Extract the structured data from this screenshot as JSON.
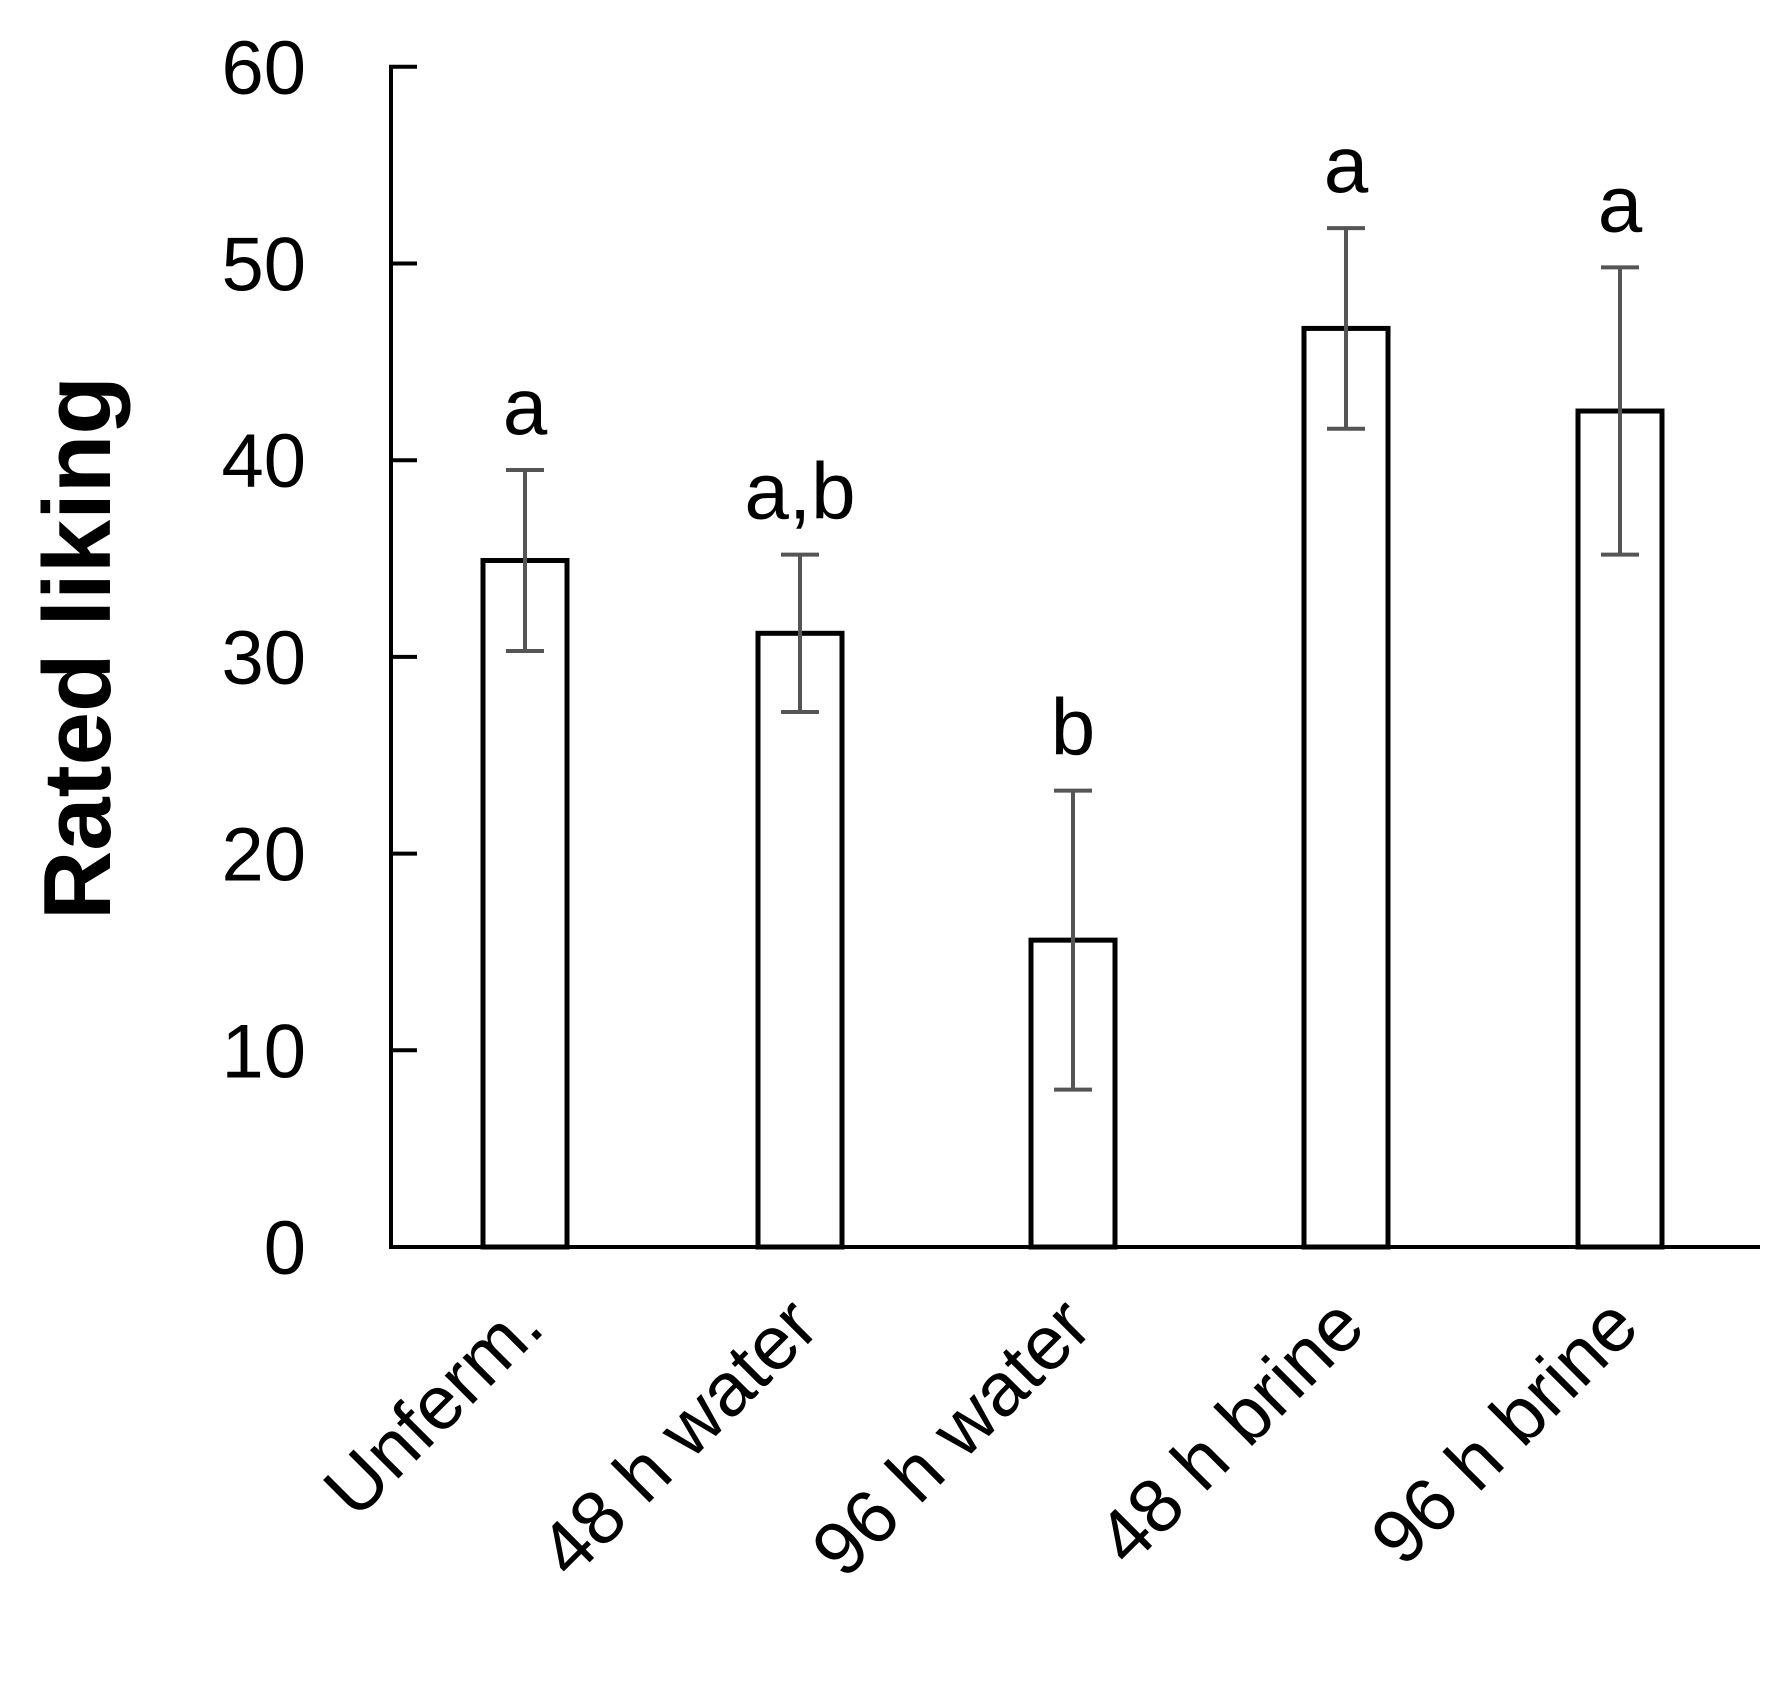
{
  "chart_data": {
    "type": "bar",
    "title": "",
    "xlabel": "",
    "ylabel": "Rated liking",
    "ylim": [
      0,
      60
    ],
    "yticks": [
      "0",
      "10",
      "20",
      "30",
      "40",
      "50",
      "60"
    ],
    "grid": false,
    "legend": "none",
    "categories": [
      "Unferm.",
      "48 h water",
      "96 h water",
      "48 h brine",
      "96 h brine"
    ],
    "values": [
      34.9,
      31.2,
      15.6,
      46.7,
      42.5
    ],
    "error": [
      4.6,
      4.0,
      7.6,
      5.1,
      7.3
    ],
    "significance": [
      "a",
      "a,b",
      "b",
      "a",
      "a"
    ],
    "colors": {
      "bar_fill": "#ffffff",
      "bar_stroke": "#000000",
      "axis": "#000000",
      "error_bar": "#555555"
    }
  }
}
